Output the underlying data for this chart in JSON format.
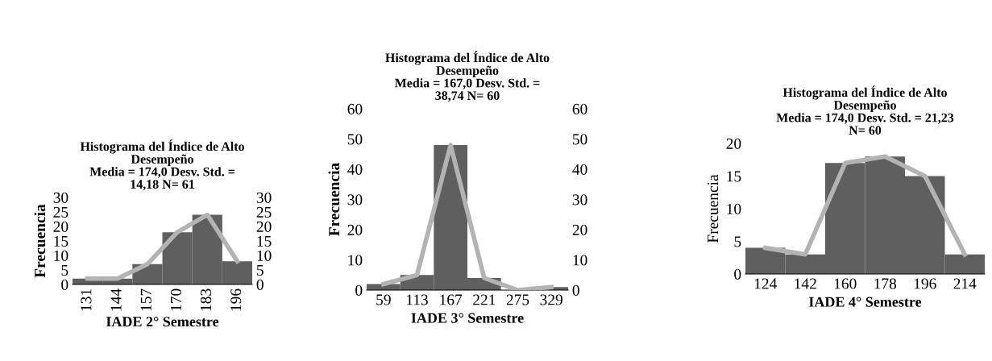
{
  "chart_data": [
    {
      "type": "bar",
      "title": "Histograma del Índice de Alto\nDesempeño\nMedia = 174,0 Desv. Std. =\n14,18 N= 61",
      "xlabel": "IADE 2° Semestre",
      "ylabel": "Frecuencia",
      "categories": [
        "131",
        "144",
        "157",
        "170",
        "183",
        "196"
      ],
      "series": [
        {
          "color": "#5f5f5f",
          "values": [
            2,
            2,
            7,
            18,
            24,
            8
          ]
        },
        {
          "type": "line",
          "color": "#b3b3b3",
          "axis": "y2",
          "values": [
            2,
            2,
            7,
            18,
            24,
            8
          ]
        }
      ],
      "ylim": [
        0,
        30
      ],
      "yticks": [
        0,
        5,
        10,
        15,
        20,
        25,
        30
      ],
      "y2lim": [
        0,
        30
      ],
      "y2ticks": [
        0,
        5,
        10,
        15,
        20,
        25,
        30
      ],
      "grid": false,
      "legend": false
    },
    {
      "type": "bar",
      "title": "Histograma del Índice de Alto\nDesempeño\nMedia = 167,0 Desv. Std. =\n38,74 N= 60",
      "xlabel": "IADE 3° Semestre",
      "ylabel": "Frecuencia",
      "categories": [
        "59",
        "113",
        "167",
        "221",
        "275",
        "329"
      ],
      "series": [
        {
          "color": "#5f5f5f",
          "values": [
            2,
            5,
            48,
            4,
            0,
            1
          ]
        },
        {
          "type": "line",
          "color": "#b3b3b3",
          "axis": "y2",
          "values": [
            2,
            5,
            48,
            4,
            0,
            1
          ]
        }
      ],
      "ylim": [
        0,
        60
      ],
      "yticks": [
        0,
        10,
        20,
        30,
        40,
        50,
        60
      ],
      "y2lim": [
        0,
        60
      ],
      "y2ticks": [
        0,
        10,
        20,
        30,
        40,
        50,
        60
      ],
      "grid": false,
      "legend": false
    },
    {
      "type": "bar",
      "title": "Histograma del Índice de Alto\nDesempeño\nMedia = 174,0 Desv. Std. = 21,23\nN= 60",
      "xlabel": "IADE 4° Semestre",
      "ylabel": "Frecuencia",
      "categories": [
        "124",
        "142",
        "160",
        "178",
        "196",
        "214"
      ],
      "series": [
        {
          "color": "#5f5f5f",
          "values": [
            4,
            3,
            17,
            18,
            15,
            3
          ]
        },
        {
          "type": "line",
          "color": "#b3b3b3",
          "values": [
            4,
            3,
            17,
            18,
            15,
            3
          ]
        }
      ],
      "ylim": [
        0,
        20
      ],
      "yticks": [
        0,
        5,
        10,
        15,
        20
      ],
      "grid": false,
      "legend": false
    }
  ]
}
